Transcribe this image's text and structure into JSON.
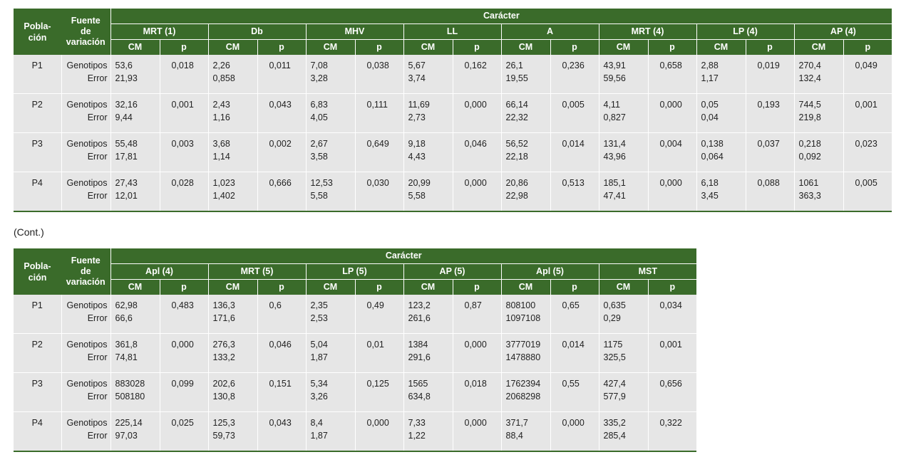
{
  "labels": {
    "poblacion": "Pobla-ción",
    "poblacion_1": "Pobla-",
    "poblacion_2": "ción",
    "fuente_1": "Fuente",
    "fuente_2": "de",
    "fuente_3": "variación",
    "caracter": "Carácter",
    "cm": "CM",
    "p": "p",
    "genotipos": "Genotipos",
    "error": "Error",
    "cont": "(Cont.)"
  },
  "table1": {
    "traits": [
      "MRT (1)",
      "Db",
      "MHV",
      "LL",
      "A",
      "MRT (4)",
      "LP (4)",
      "AP (4)"
    ],
    "rows": [
      {
        "pop": "P1",
        "cells": [
          [
            "53,6",
            "21,93",
            "0,018"
          ],
          [
            "2,26",
            "0,858",
            "0,011"
          ],
          [
            "7,08",
            "3,28",
            "0,038"
          ],
          [
            "5,67",
            "3,74",
            "0,162"
          ],
          [
            "26,1",
            "19,55",
            "0,236"
          ],
          [
            "43,91",
            "59,56",
            "0,658"
          ],
          [
            "2,88",
            "1,17",
            "0,019"
          ],
          [
            "270,4",
            "132,4",
            "0,049"
          ]
        ]
      },
      {
        "pop": "P2",
        "cells": [
          [
            "32,16",
            "9,44",
            "0,001"
          ],
          [
            "2,43",
            "1,16",
            "0,043"
          ],
          [
            "6,83",
            "4,05",
            "0,111"
          ],
          [
            "11,69",
            "2,73",
            "0,000"
          ],
          [
            "66,14",
            "22,32",
            "0,005"
          ],
          [
            "4,11",
            "0,827",
            "0,000"
          ],
          [
            "0,05",
            "0,04",
            "0,193"
          ],
          [
            "744,5",
            "219,8",
            "0,001"
          ]
        ]
      },
      {
        "pop": "P3",
        "cells": [
          [
            "55,48",
            "17,81",
            "0,003"
          ],
          [
            "3,68",
            "1,14",
            "0,002"
          ],
          [
            "2,67",
            "3,58",
            "0,649"
          ],
          [
            "9,18",
            "4,43",
            "0,046"
          ],
          [
            "56,52",
            "22,18",
            "0,014"
          ],
          [
            "131,4",
            "43,96",
            "0,004"
          ],
          [
            "0,138",
            "0,064",
            "0,037"
          ],
          [
            "0,218",
            "0,092",
            "0,023"
          ]
        ]
      },
      {
        "pop": "P4",
        "cells": [
          [
            "27,43",
            "12,01",
            "0,028"
          ],
          [
            "1,023",
            "1,402",
            "0,666"
          ],
          [
            "12,53",
            "5,58",
            "0,030"
          ],
          [
            "20,99",
            "5,58",
            "0,000"
          ],
          [
            "20,86",
            "22,98",
            "0,513"
          ],
          [
            "185,1",
            "47,41",
            "0,000"
          ],
          [
            "6,18",
            "3,45",
            "0,088"
          ],
          [
            "1061",
            "363,3",
            "0,005"
          ]
        ]
      }
    ]
  },
  "table2": {
    "traits": [
      "Apl (4)",
      "MRT (5)",
      "LP (5)",
      "AP (5)",
      "Apl (5)",
      "MST"
    ],
    "rows": [
      {
        "pop": "P1",
        "cells": [
          [
            "62,98",
            "66,6",
            "0,483"
          ],
          [
            "136,3",
            "171,6",
            "0,6"
          ],
          [
            "2,35",
            "2,53",
            "0,49"
          ],
          [
            "123,2",
            "261,6",
            "0,87"
          ],
          [
            "808100",
            "1097108",
            "0,65"
          ],
          [
            "0,635",
            "0,29",
            "0,034"
          ]
        ]
      },
      {
        "pop": "P2",
        "cells": [
          [
            "361,8",
            "74,81",
            "0,000"
          ],
          [
            "276,3",
            "133,2",
            "0,046"
          ],
          [
            "5,04",
            "1,87",
            "0,01"
          ],
          [
            "1384",
            "291,6",
            "0,000"
          ],
          [
            "3777019",
            "1478880",
            "0,014"
          ],
          [
            "1175",
            "325,5",
            "0,001"
          ]
        ]
      },
      {
        "pop": "P3",
        "cells": [
          [
            "883028",
            "508180",
            "0,099"
          ],
          [
            "202,6",
            "130,8",
            "0,151"
          ],
          [
            "5,34",
            "3,26",
            "0,125"
          ],
          [
            "1565",
            "634,8",
            "0,018"
          ],
          [
            "1762394",
            "2068298",
            "0,55"
          ],
          [
            "427,4",
            "577,9",
            "0,656"
          ]
        ]
      },
      {
        "pop": "P4",
        "cells": [
          [
            "225,14",
            "97,03",
            "0,025"
          ],
          [
            "125,3",
            "59,73",
            "0,043"
          ],
          [
            "8,4",
            "1,87",
            "0,000"
          ],
          [
            "7,33",
            "1,22",
            "0,000"
          ],
          [
            "371,7",
            "88,4",
            "0,000"
          ],
          [
            "335,2",
            "285,4",
            "0,322"
          ]
        ]
      }
    ]
  }
}
